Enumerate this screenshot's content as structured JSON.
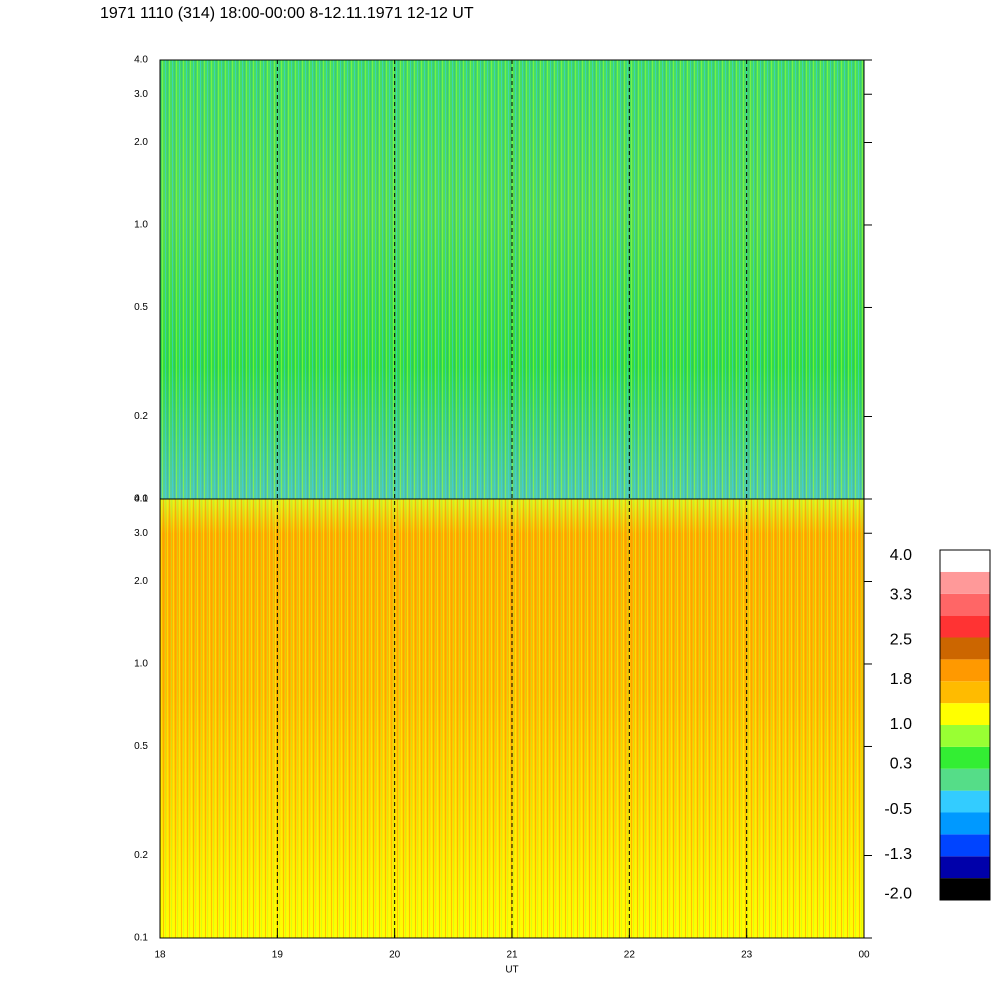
{
  "chart_data": {
    "type": "spectrogram",
    "title": "1971 1110 (314) 18:00-00:00 8-12.11.1971  12-12 UT",
    "xlabel": "UT",
    "xlim": [
      18,
      24
    ],
    "xticks": [
      18,
      19,
      20,
      21,
      22,
      23,
      {
        "value": 24,
        "label": "00"
      }
    ],
    "ylim": [
      0.1,
      4.0
    ],
    "yticks": [
      0.1,
      0.2,
      0.5,
      {
        "value": 1,
        "label": "1.0"
      },
      {
        "value": 2,
        "label": "2.0"
      },
      {
        "value": 3,
        "label": "3.0"
      },
      {
        "value": 4,
        "label": "4.0"
      }
    ],
    "log_y": true,
    "grid": true,
    "colorbar": {
      "clim": [
        -2.1,
        4.1
      ],
      "ticks": [
        {
          "value": 4,
          "label": "4.0"
        },
        3.3,
        2.5,
        1.8,
        {
          "value": 1,
          "label": "1.0"
        },
        0.3,
        -0.5,
        -1.3,
        {
          "value": -2,
          "label": "-2.0"
        }
      ],
      "colors": [
        "#000000",
        "#0000aa",
        "#0044ff",
        "#0099ff",
        "#33ccff",
        "#55dd88",
        "#33ee33",
        "#99ff33",
        "#ffff00",
        "#ffbb00",
        "#ff9900",
        "#cc6600",
        "#ff3333",
        "#ff6666",
        "#ff9999",
        "#ffffff"
      ]
    }
  }
}
